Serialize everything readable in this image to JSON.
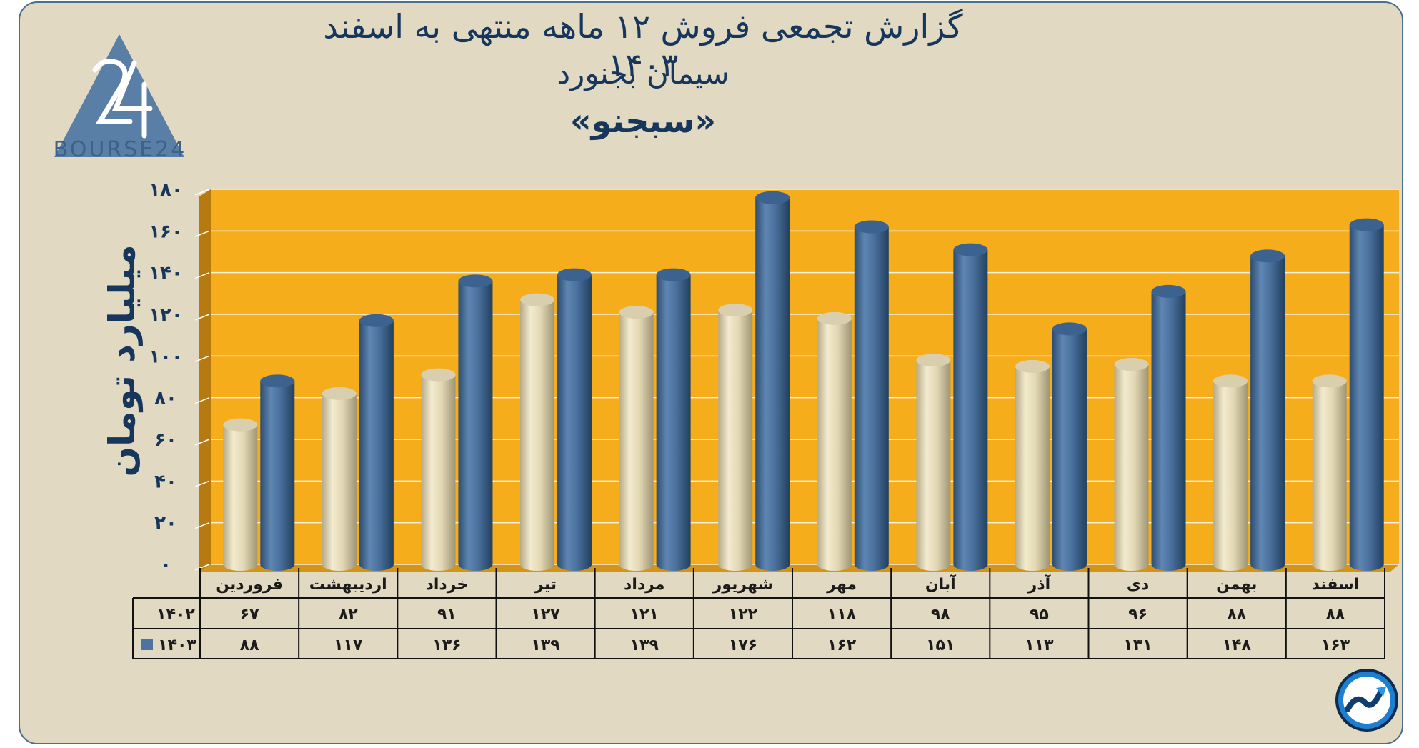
{
  "header": {
    "title_line1": "گزارش تجمعی فروش ۱۲ ماهه منتهی به اسفند ۱۴۰۳",
    "title_line2": "سیمان بجنورد",
    "title_line3": "«سبجنو»"
  },
  "logo": {
    "text": "BOURSE24",
    "icon": "bourse24-triangle-logo"
  },
  "corner_icon": "trend-arrow-badge-icon",
  "colors": {
    "panel_bg": "#e2d9c2",
    "plot_bg": "#f6ad1c",
    "series_1402": "#e6dcbc",
    "series_1403": "#4d74a0",
    "title": "#16365c"
  },
  "chart_data": {
    "type": "bar",
    "title": "گزارش تجمعی فروش ۱۲ ماهه منتهی به اسفند ۱۴۰۳",
    "ylabel": "میلیارد تومان",
    "xlabel": "",
    "ylim": [
      0,
      180
    ],
    "yticks": [
      "۰",
      "۲۰",
      "۴۰",
      "۶۰",
      "۸۰",
      "۱۰۰",
      "۱۲۰",
      "۱۴۰",
      "۱۶۰",
      "۱۸۰"
    ],
    "grid": true,
    "categories": [
      "فروردین",
      "اردیبهشت",
      "خرداد",
      "تیر",
      "مرداد",
      "شهریور",
      "مهر",
      "آبان",
      "آذر",
      "دی",
      "بهمن",
      "اسفند"
    ],
    "series": [
      {
        "name": "۱۴۰۲",
        "values": [
          67,
          82,
          91,
          127,
          121,
          122,
          118,
          98,
          95,
          96,
          88,
          88
        ],
        "labels": [
          "۶۷",
          "۸۲",
          "۹۱",
          "۱۲۷",
          "۱۲۱",
          "۱۲۲",
          "۱۱۸",
          "۹۸",
          "۹۵",
          "۹۶",
          "۸۸",
          "۸۸"
        ]
      },
      {
        "name": "۱۴۰۳",
        "values": [
          88,
          117,
          136,
          139,
          139,
          176,
          162,
          151,
          113,
          131,
          148,
          163
        ],
        "labels": [
          "۸۸",
          "۱۱۷",
          "۱۳۶",
          "۱۳۹",
          "۱۳۹",
          "۱۷۶",
          "۱۶۲",
          "۱۵۱",
          "۱۱۳",
          "۱۳۱",
          "۱۴۸",
          "۱۶۳"
        ]
      }
    ]
  }
}
